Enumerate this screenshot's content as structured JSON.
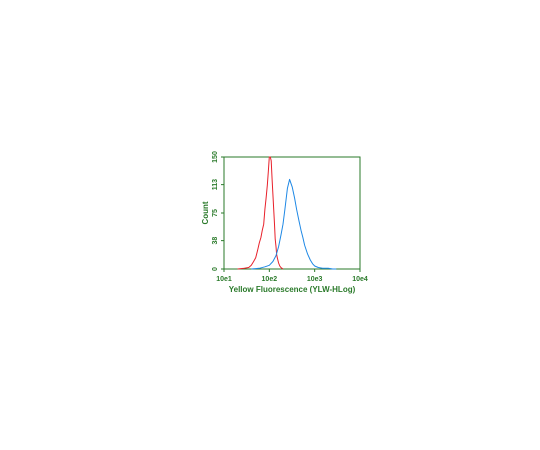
{
  "chart_data": {
    "type": "line",
    "title": "",
    "xlabel": "Yellow Fluorescence (YLW-HLog)",
    "ylabel": "Count",
    "x_scale": "log",
    "xlim": [
      10,
      10000
    ],
    "ylim": [
      0,
      150
    ],
    "x_ticks": [
      {
        "value": 10,
        "label": "10e1"
      },
      {
        "value": 100,
        "label": "10e2"
      },
      {
        "value": 1000,
        "label": "10e3"
      },
      {
        "value": 10000,
        "label": "10e4"
      }
    ],
    "y_ticks": [
      {
        "value": 0,
        "label": "0"
      },
      {
        "value": 38,
        "label": "38"
      },
      {
        "value": 75,
        "label": "75"
      },
      {
        "value": 113,
        "label": "113"
      },
      {
        "value": 150,
        "label": "150"
      }
    ],
    "grid": false,
    "legend": "none",
    "frame_color": "#2a7a2a",
    "series": [
      {
        "color": "#e8202a",
        "x": [
          20,
          28,
          35,
          40,
          45,
          50,
          55,
          60,
          65,
          70,
          75,
          80,
          85,
          90,
          95,
          100,
          105,
          110,
          115,
          120,
          125,
          130,
          135,
          140,
          145,
          150,
          160,
          170,
          180,
          190,
          200
        ],
        "y": [
          0,
          1,
          2,
          5,
          10,
          15,
          25,
          35,
          42,
          52,
          60,
          80,
          95,
          112,
          130,
          150,
          150,
          145,
          120,
          100,
          80,
          60,
          40,
          30,
          20,
          15,
          8,
          4,
          2,
          1,
          0
        ]
      },
      {
        "color": "#1e88e5",
        "x": [
          40,
          60,
          80,
          100,
          120,
          140,
          160,
          180,
          200,
          220,
          250,
          280,
          320,
          360,
          400,
          450,
          500,
          550,
          600,
          700,
          800,
          900,
          1000,
          1200,
          1500,
          2000,
          2500,
          3000
        ],
        "y": [
          0,
          1,
          3,
          5,
          10,
          18,
          30,
          45,
          60,
          80,
          108,
          120,
          110,
          95,
          80,
          65,
          52,
          42,
          32,
          20,
          12,
          7,
          4,
          2,
          1,
          1,
          0,
          0
        ]
      }
    ]
  }
}
